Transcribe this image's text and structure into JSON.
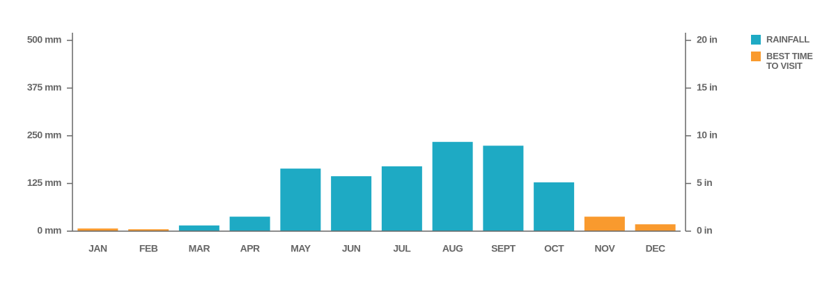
{
  "chart_data": {
    "type": "bar",
    "categories": [
      "JAN",
      "FEB",
      "MAR",
      "APR",
      "MAY",
      "JUN",
      "JUL",
      "AUG",
      "SEPT",
      "OCT",
      "NOV",
      "DEC"
    ],
    "series": [
      {
        "name": "RAINFALL",
        "color": "#1eaac4",
        "values": [
          null,
          null,
          15,
          38,
          164,
          144,
          170,
          234,
          224,
          128,
          null,
          null
        ]
      },
      {
        "name": "BEST TIME TO VISIT",
        "color": "#f99a2e",
        "values": [
          7,
          5,
          null,
          null,
          null,
          null,
          null,
          null,
          null,
          null,
          38,
          18
        ]
      }
    ],
    "ylim": [
      0,
      500
    ],
    "yticks": [
      {
        "value": 0,
        "label": "0 mm"
      },
      {
        "value": 125,
        "label": "125 mm"
      },
      {
        "value": 250,
        "label": "250 mm"
      },
      {
        "value": 375,
        "label": "375 mm"
      },
      {
        "value": 500,
        "label": "500 mm"
      }
    ],
    "y2lim": [
      0,
      20
    ],
    "y2ticks": [
      {
        "value": 0,
        "label": "0 in"
      },
      {
        "value": 5,
        "label": "5 in"
      },
      {
        "value": 10,
        "label": "10 in"
      },
      {
        "value": 15,
        "label": "15 in"
      },
      {
        "value": 20,
        "label": "20 in"
      }
    ],
    "grid": false
  }
}
